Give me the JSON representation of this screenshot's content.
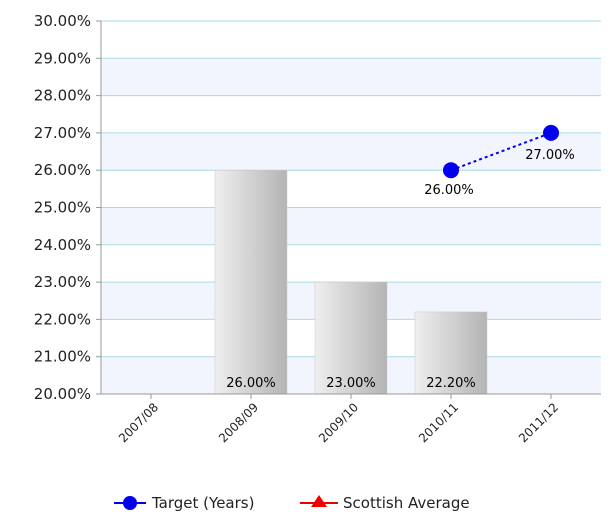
{
  "chart_data": {
    "type": "bar",
    "categories": [
      "2007/08",
      "2008/09",
      "2009/10",
      "2010/11",
      "2011/12"
    ],
    "bars": {
      "values": [
        null,
        26.0,
        23.0,
        22.2,
        null
      ],
      "labels": [
        "",
        "26.00%",
        "23.00%",
        "22.20%",
        ""
      ]
    },
    "series": [
      {
        "name": "Target (Years)",
        "type": "line",
        "style": "dotted",
        "marker": "circle",
        "color": "#0000ee",
        "values": [
          null,
          null,
          null,
          26.0,
          27.0
        ],
        "labels": [
          "",
          "",
          "",
          "26.00%",
          "27.00%"
        ]
      },
      {
        "name": "Scottish Average",
        "type": "line",
        "marker": "triangle",
        "color": "#ee0000",
        "values": [
          null,
          null,
          null,
          null,
          null
        ],
        "labels": []
      }
    ],
    "ylim": [
      20,
      30
    ],
    "yticks": [
      20,
      21,
      22,
      23,
      24,
      25,
      26,
      27,
      28,
      29,
      30
    ],
    "ytick_labels": [
      "20.00%",
      "21.00%",
      "22.00%",
      "23.00%",
      "24.00%",
      "25.00%",
      "26.00%",
      "27.00%",
      "28.00%",
      "29.00%",
      "30.00%"
    ],
    "grid": true,
    "legend_position": "bottom",
    "colors": {
      "bar_light": "#efefef",
      "bar_dark": "#b4b4b4",
      "grid": "#a9dbe6",
      "band": "#f2f5fd",
      "axis": "#999999"
    }
  }
}
